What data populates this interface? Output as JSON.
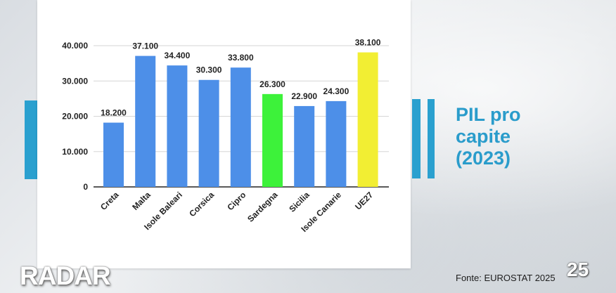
{
  "title_lines": [
    "PIL pro",
    "capite",
    "(2023)"
  ],
  "source": "Fonte: EUROSTAT 2025",
  "page_number": "25",
  "logo": "RADAR",
  "colors": {
    "accent": "#2aa0cf",
    "bar": "#4d8fe8",
    "highlight_sardegna": "#3df23a",
    "highlight_ue27": "#f2ee33"
  },
  "chart_data": {
    "type": "bar",
    "categories": [
      "Creta",
      "Malta",
      "Isole Baleari",
      "Corsica",
      "Cipro",
      "Sardegna",
      "Sicilia",
      "Isole Canarie",
      "UE27"
    ],
    "values": [
      18200,
      37100,
      34400,
      30300,
      33800,
      26300,
      22900,
      24300,
      38100
    ],
    "value_labels": [
      "18.200",
      "37.100",
      "34.400",
      "30.300",
      "33.800",
      "26.300",
      "22.900",
      "24.300",
      "38.100"
    ],
    "bar_colors": [
      "#4d8fe8",
      "#4d8fe8",
      "#4d8fe8",
      "#4d8fe8",
      "#4d8fe8",
      "#3df23a",
      "#4d8fe8",
      "#4d8fe8",
      "#f2ee33"
    ],
    "y_ticks": [
      0,
      10000,
      20000,
      30000,
      40000
    ],
    "y_tick_labels": [
      "0",
      "10.000",
      "20.000",
      "30.000",
      "40.000"
    ],
    "ylim": [
      0,
      40000
    ],
    "grid": true
  }
}
